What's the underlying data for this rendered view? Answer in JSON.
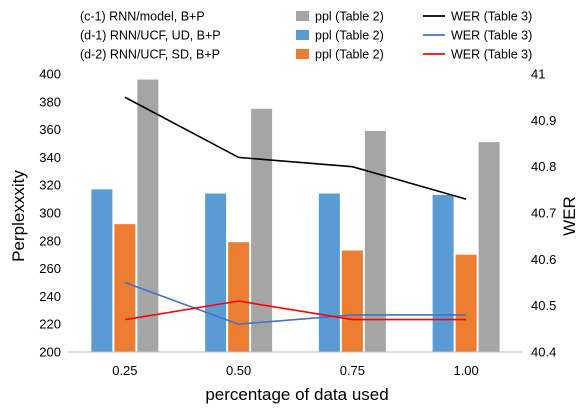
{
  "chart_data": {
    "type": "bar",
    "categories": [
      "0.25",
      "0.50",
      "0.75",
      "1.00"
    ],
    "xlabel": "percentage of data used",
    "ylabel": "Perplexxxity",
    "y2label": "WER",
    "ylim": [
      200,
      400
    ],
    "yticks": [
      "200",
      "220",
      "240",
      "260",
      "280",
      "300",
      "320",
      "340",
      "360",
      "380",
      "400"
    ],
    "y2lim": [
      40.4,
      41
    ],
    "y2ticks": [
      "40.4",
      "40.5",
      "40.6",
      "40.7",
      "40.8",
      "40.9",
      "41"
    ],
    "grid": false,
    "legend_position": "top",
    "legend_groups": [
      "(c-1) RNN/model, B+P",
      "(d-1) RNN/UCF, UD, B+P",
      "(d-2) RNN/UCF, SD, B+P"
    ],
    "bar_series": [
      {
        "name": "ppl (Table 2)",
        "color": "#5b9bd5",
        "values": [
          317,
          314,
          314,
          313
        ]
      },
      {
        "name": "ppl (Table 2)",
        "color": "#ed7d31",
        "values": [
          292,
          279,
          273,
          270
        ]
      },
      {
        "name": "ppl (Table 2)",
        "color": "#a5a5a5",
        "values": [
          396,
          375,
          359,
          351
        ]
      }
    ],
    "line_series": [
      {
        "name": "WER (Table 3)",
        "color": "#000000",
        "axis": "right",
        "values": [
          40.95,
          40.82,
          40.8,
          40.73
        ]
      },
      {
        "name": "WER (Table 3)",
        "color": "#4472c4",
        "axis": "right",
        "values": [
          40.55,
          40.46,
          40.48,
          40.48
        ]
      },
      {
        "name": "WER (Table 3)",
        "color": "#ff0000",
        "axis": "right",
        "values": [
          40.47,
          40.51,
          40.47,
          40.47
        ]
      }
    ],
    "legend_rows": [
      {
        "group": 0,
        "bar": 2,
        "line": 0
      },
      {
        "group": 1,
        "bar": 0,
        "line": 1
      },
      {
        "group": 2,
        "bar": 1,
        "line": 2
      }
    ]
  }
}
